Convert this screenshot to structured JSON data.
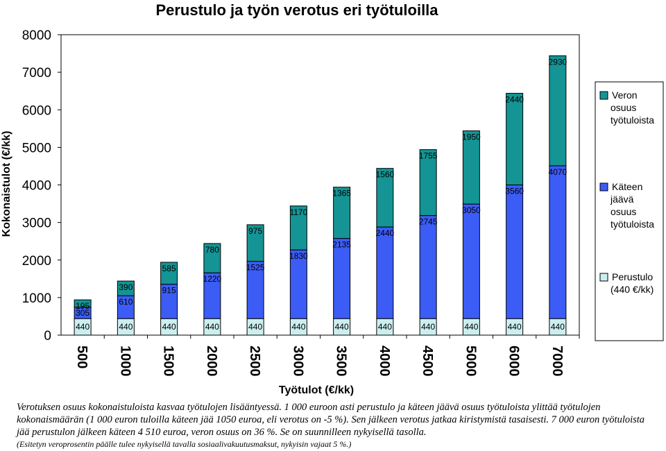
{
  "chart_data": {
    "type": "bar",
    "stacked": true,
    "title": "Perustulo ja työn verotus eri työtuloilla",
    "xlabel": "Työtulot (€/kk)",
    "ylabel": "Kokonaistulot (€/kk)",
    "ylim": [
      0,
      8000
    ],
    "yticks": [
      0,
      1000,
      2000,
      3000,
      4000,
      5000,
      6000,
      7000,
      8000
    ],
    "grid": false,
    "legend_position": "right",
    "categories": [
      "500",
      "1000",
      "1500",
      "2000",
      "2500",
      "3000",
      "3500",
      "4000",
      "4500",
      "5000",
      "6000",
      "7000"
    ],
    "series": [
      {
        "name": "Perustulo (440 €/kk)",
        "color": "#cdeeee",
        "values": [
          440,
          440,
          440,
          440,
          440,
          440,
          440,
          440,
          440,
          440,
          440,
          440
        ]
      },
      {
        "name": "Käteen jäävä osuus työtuloista",
        "color": "#3b5cf5",
        "values": [
          305,
          610,
          915,
          1220,
          1525,
          1830,
          2135,
          2440,
          2745,
          3050,
          3560,
          4070
        ]
      },
      {
        "name": "Veron osuus työtuloista",
        "color": "#149494",
        "values": [
          195,
          390,
          585,
          780,
          975,
          1170,
          1365,
          1560,
          1755,
          1950,
          2440,
          2930
        ]
      }
    ],
    "legend": [
      {
        "lines": [
          "Veron",
          "osuus",
          "työtuloista"
        ],
        "color": "#149494"
      },
      {
        "lines": [
          "Käteen",
          "jäävä",
          "osuus",
          "työtuloista"
        ],
        "color": "#3b5cf5"
      },
      {
        "lines": [
          "Perustulo",
          "(440 €/kk)"
        ],
        "color": "#cdeeee"
      }
    ]
  },
  "caption": {
    "main": "Verotuksen osuus kokonaistuloista kasvaa työtulojen lisääntyessä. 1 000 euroon asti perustulo ja käteen jäävä osuus työtuloista ylittää työtulojen kokonaismäärän (1 000 euron tuloilla käteen jää 1050 euroa, eli verotus on -5 %). Sen jälkeen verotus jatkaa kiristymistä tasaisesti. 7 000 euron työtuloista jää perustulon jälkeen käteen 4 510 euroa, veron osuus on 36 %. Se on suunnilleen nykyisellä tasolla.",
    "note": "(Esitetyn veroprosentin päälle tulee nykyisellä tavalla sosiaalivakuutusmaksut, nykyisin vajaat 5 %.)"
  }
}
